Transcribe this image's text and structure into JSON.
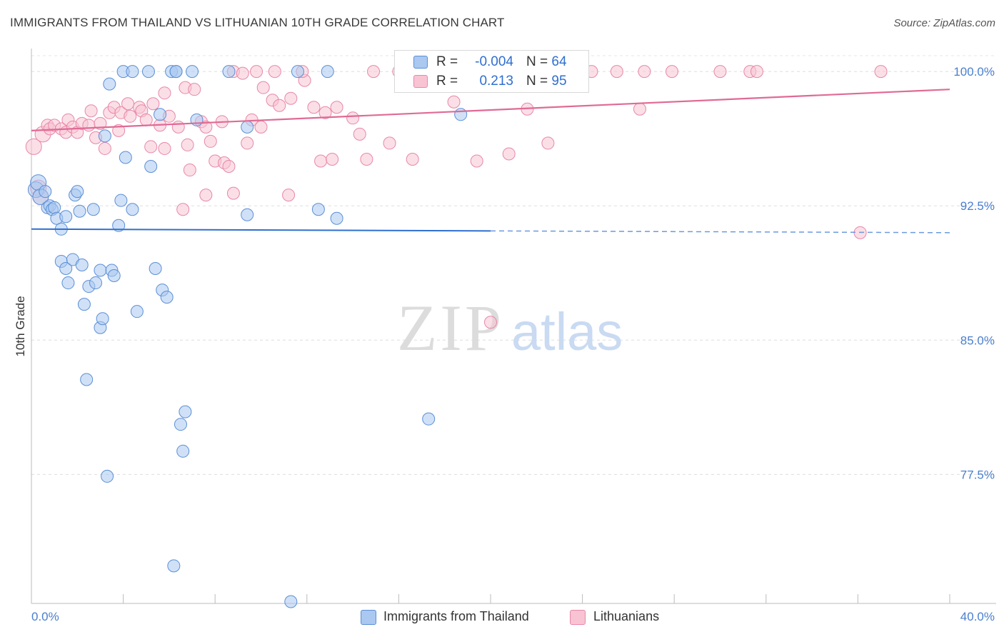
{
  "title": "IMMIGRANTS FROM THAILAND VS LITHUANIAN 10TH GRADE CORRELATION CHART",
  "source": "Source: ZipAtlas.com",
  "watermark": {
    "zip": "ZIP",
    "atlas": "atlas"
  },
  "legend": {
    "rows": [
      {
        "r_label": "R =",
        "r_value": "-0.004",
        "n_label": "N =",
        "n_value": "64",
        "color": "#aac8f0",
        "border": "#5b8fd6"
      },
      {
        "r_label": "R =",
        "r_value": "0.213",
        "n_label": "N =",
        "n_value": "95",
        "color": "#f8c4d4",
        "border": "#e887a8"
      }
    ]
  },
  "bottom_legend": [
    {
      "label": "Immigrants from Thailand",
      "color": "#aac8f0",
      "border": "#5b8fd6"
    },
    {
      "label": "Lithuanians",
      "color": "#f8c4d4",
      "border": "#e887a8"
    }
  ],
  "chart_data": {
    "type": "scatter",
    "title": "IMMIGRANTS FROM THAILAND VS LITHUANIAN 10TH GRADE CORRELATION CHART",
    "xlabel": "",
    "ylabel": "10th Grade",
    "xlim": [
      0,
      40
    ],
    "ylim": [
      70.3,
      101.2
    ],
    "x_tick_labels": [
      "0.0%",
      "40.0%"
    ],
    "y_ticks": [
      77.5,
      85.0,
      92.5,
      100.0
    ],
    "y_tick_labels": [
      "77.5%",
      "85.0%",
      "92.5%",
      "100.0%"
    ],
    "grid": "horizontal dashed",
    "series": [
      {
        "name": "Immigrants from Thailand",
        "color": "#5b8fd6",
        "fill": "#aac8f0",
        "trend": {
          "x_start": 0,
          "y_start": 91.2,
          "x_solid_end": 20,
          "x_end": 40,
          "y_end": 91.0
        },
        "points": [
          [
            0.2,
            93.4
          ],
          [
            0.3,
            93.8
          ],
          [
            0.4,
            93.0
          ],
          [
            0.6,
            93.3
          ],
          [
            0.7,
            92.4
          ],
          [
            0.8,
            92.5
          ],
          [
            0.9,
            92.3
          ],
          [
            1.0,
            92.4
          ],
          [
            1.1,
            91.8
          ],
          [
            1.3,
            91.2
          ],
          [
            1.5,
            91.9
          ],
          [
            1.9,
            93.1
          ],
          [
            2.0,
            93.3
          ],
          [
            2.1,
            92.2
          ],
          [
            2.7,
            92.3
          ],
          [
            3.2,
            96.4
          ],
          [
            3.4,
            99.3
          ],
          [
            3.8,
            91.4
          ],
          [
            3.9,
            92.8
          ],
          [
            4.1,
            95.2
          ],
          [
            4.4,
            92.3
          ],
          [
            5.2,
            94.7
          ],
          [
            5.6,
            97.6
          ],
          [
            1.3,
            89.4
          ],
          [
            1.5,
            89.0
          ],
          [
            1.6,
            88.2
          ],
          [
            1.8,
            89.5
          ],
          [
            2.2,
            89.2
          ],
          [
            2.3,
            87.0
          ],
          [
            2.5,
            88.0
          ],
          [
            2.8,
            88.2
          ],
          [
            3.0,
            85.7
          ],
          [
            3.1,
            86.2
          ],
          [
            3.0,
            88.9
          ],
          [
            3.5,
            88.9
          ],
          [
            3.6,
            88.6
          ],
          [
            4.6,
            86.6
          ],
          [
            5.4,
            89.0
          ],
          [
            5.7,
            87.8
          ],
          [
            5.9,
            87.4
          ],
          [
            2.4,
            82.8
          ],
          [
            6.5,
            80.3
          ],
          [
            6.7,
            81.0
          ],
          [
            6.6,
            78.8
          ],
          [
            3.3,
            77.4
          ],
          [
            6.2,
            72.4
          ],
          [
            11.3,
            70.4
          ],
          [
            17.3,
            80.6
          ],
          [
            4.0,
            100.0
          ],
          [
            4.4,
            100.0
          ],
          [
            5.1,
            100.0
          ],
          [
            6.1,
            100.0
          ],
          [
            6.3,
            100.0
          ],
          [
            6.3,
            100.0
          ],
          [
            7.0,
            100.0
          ],
          [
            8.6,
            100.0
          ],
          [
            11.6,
            100.0
          ],
          [
            12.9,
            100.0
          ],
          [
            7.2,
            97.3
          ],
          [
            9.4,
            96.9
          ],
          [
            9.4,
            92.0
          ],
          [
            12.5,
            92.3
          ],
          [
            13.3,
            91.8
          ],
          [
            18.7,
            97.6
          ]
        ]
      },
      {
        "name": "Lithuanians",
        "color": "#e887a8",
        "fill": "#f8c4d4",
        "trend": {
          "x_start": 0,
          "y_start": 96.7,
          "x_end": 40,
          "y_end": 99.0
        },
        "points": [
          [
            0.1,
            95.8
          ],
          [
            0.5,
            96.5
          ],
          [
            0.7,
            97.0
          ],
          [
            0.8,
            96.8
          ],
          [
            1.0,
            97.0
          ],
          [
            1.3,
            96.8
          ],
          [
            1.5,
            96.6
          ],
          [
            1.6,
            97.3
          ],
          [
            1.8,
            96.9
          ],
          [
            2.0,
            96.6
          ],
          [
            2.2,
            97.1
          ],
          [
            2.5,
            97.0
          ],
          [
            2.6,
            97.8
          ],
          [
            2.8,
            96.3
          ],
          [
            3.0,
            97.1
          ],
          [
            3.2,
            95.7
          ],
          [
            3.4,
            97.7
          ],
          [
            3.6,
            98.0
          ],
          [
            3.8,
            96.7
          ],
          [
            3.9,
            97.7
          ],
          [
            4.2,
            98.2
          ],
          [
            4.3,
            97.5
          ],
          [
            4.7,
            98.0
          ],
          [
            4.8,
            97.8
          ],
          [
            5.0,
            97.3
          ],
          [
            5.2,
            95.8
          ],
          [
            5.3,
            98.2
          ],
          [
            5.6,
            97.0
          ],
          [
            5.8,
            95.7
          ],
          [
            5.8,
            98.8
          ],
          [
            6.0,
            97.5
          ],
          [
            6.4,
            96.9
          ],
          [
            6.7,
            99.1
          ],
          [
            6.8,
            95.9
          ],
          [
            6.9,
            94.5
          ],
          [
            7.1,
            99.0
          ],
          [
            7.4,
            97.2
          ],
          [
            7.6,
            96.9
          ],
          [
            7.8,
            96.1
          ],
          [
            8.0,
            95.0
          ],
          [
            8.3,
            97.2
          ],
          [
            8.4,
            94.9
          ],
          [
            8.6,
            94.7
          ],
          [
            8.8,
            93.2
          ],
          [
            9.4,
            96.0
          ],
          [
            9.6,
            97.3
          ],
          [
            10.0,
            96.9
          ],
          [
            10.1,
            99.1
          ],
          [
            10.5,
            98.4
          ],
          [
            10.8,
            98.1
          ],
          [
            11.3,
            98.5
          ],
          [
            11.9,
            99.5
          ],
          [
            12.3,
            98.0
          ],
          [
            12.6,
            95.0
          ],
          [
            12.8,
            97.7
          ],
          [
            13.1,
            95.1
          ],
          [
            13.3,
            98.0
          ],
          [
            14.0,
            97.4
          ],
          [
            14.3,
            96.5
          ],
          [
            14.6,
            95.1
          ],
          [
            15.6,
            96.0
          ],
          [
            16.6,
            95.1
          ],
          [
            18.4,
            98.3
          ],
          [
            19.4,
            95.0
          ],
          [
            20.8,
            95.4
          ],
          [
            21.6,
            97.9
          ],
          [
            22.5,
            96.0
          ],
          [
            26.5,
            97.9
          ],
          [
            36.1,
            91.0
          ],
          [
            20.0,
            86.0
          ],
          [
            11.2,
            93.1
          ],
          [
            7.6,
            93.1
          ],
          [
            6.6,
            92.3
          ],
          [
            8.8,
            100.0
          ],
          [
            9.2,
            99.9
          ],
          [
            9.8,
            100.0
          ],
          [
            10.6,
            100.0
          ],
          [
            11.8,
            100.0
          ],
          [
            14.9,
            100.0
          ],
          [
            16.0,
            100.0
          ],
          [
            17.5,
            100.0
          ],
          [
            18.1,
            100.0
          ],
          [
            20.4,
            100.0
          ],
          [
            22.3,
            100.0
          ],
          [
            23.2,
            100.0
          ],
          [
            24.4,
            100.0
          ],
          [
            25.5,
            100.0
          ],
          [
            26.7,
            100.0
          ],
          [
            27.9,
            100.0
          ],
          [
            30.0,
            100.0
          ],
          [
            31.3,
            100.0
          ],
          [
            31.6,
            100.0
          ],
          [
            37.0,
            100.0
          ],
          [
            0.3,
            93.5
          ],
          [
            0.4,
            93.0
          ]
        ]
      }
    ]
  }
}
